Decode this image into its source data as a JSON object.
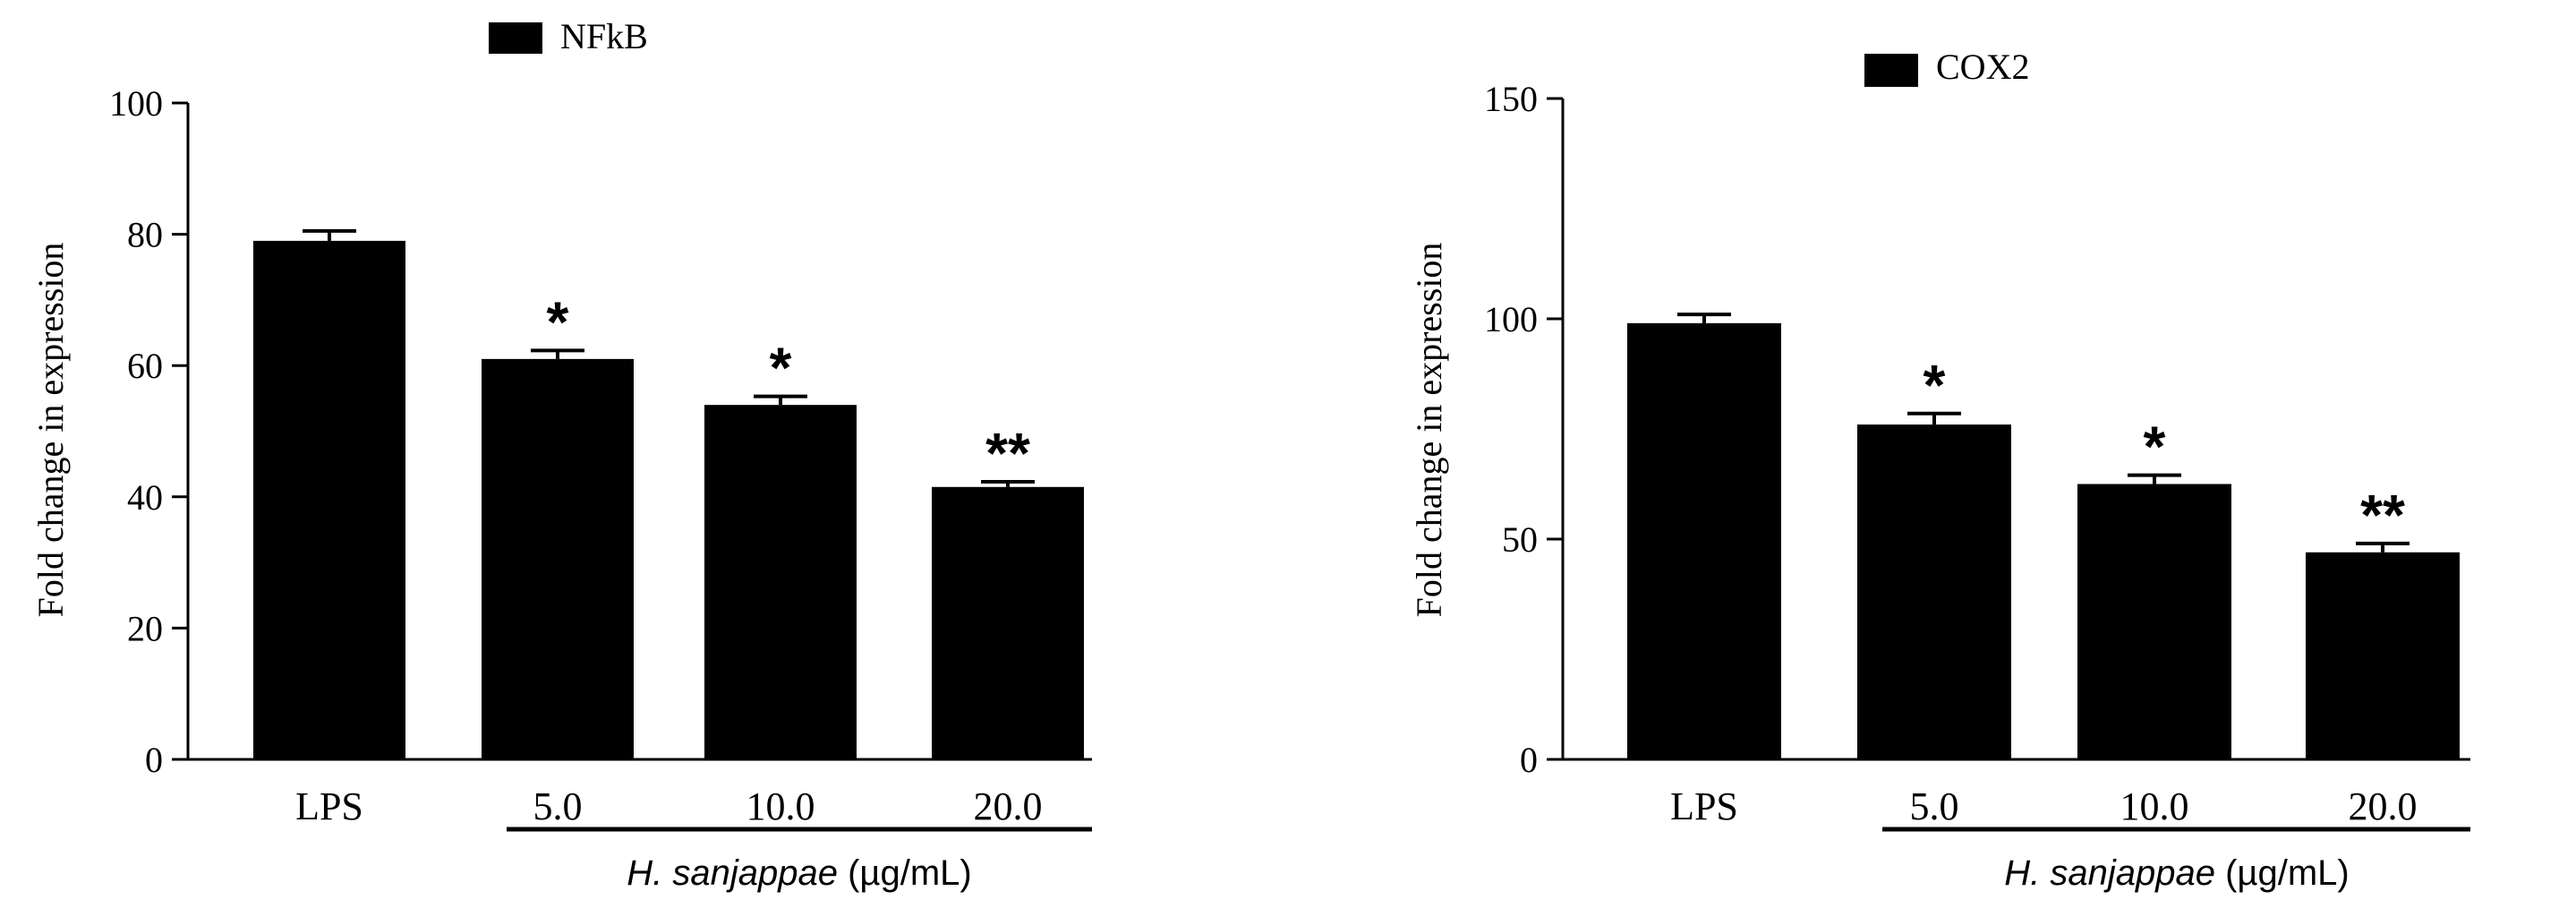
{
  "chart_data": [
    {
      "type": "bar",
      "legend": {
        "label": "NFkB",
        "placement": "top"
      },
      "ylabel": "Fold change in expression",
      "ylim": [
        0,
        100
      ],
      "yticks": [
        "0",
        "20",
        "40",
        "60",
        "80",
        "100"
      ],
      "categories": [
        "LPS",
        "5.0",
        "10.0",
        "20.0"
      ],
      "series": [
        {
          "name": "NFkB",
          "values": [
            79,
            61,
            54,
            41.5
          ],
          "errors": [
            1.5,
            1.3,
            1.3,
            0.8
          ],
          "significance": [
            "",
            "*",
            "*",
            "**"
          ]
        }
      ],
      "xgroup_label": {
        "italic": "H. sanjappae",
        "rest": " (µg/mL)"
      },
      "color": "#000000"
    },
    {
      "type": "bar",
      "legend": {
        "label": "COX2",
        "placement": "top"
      },
      "ylabel": "Fold change in expression",
      "ylim": [
        0,
        150
      ],
      "yticks": [
        "0",
        "50",
        "100",
        "150"
      ],
      "categories": [
        "LPS",
        "5.0",
        "10.0",
        "20.0"
      ],
      "series": [
        {
          "name": "COX2",
          "values": [
            99,
            76,
            62.5,
            47
          ],
          "errors": [
            2,
            2.5,
            2,
            2
          ],
          "significance": [
            "",
            "*",
            "*",
            "**"
          ]
        }
      ],
      "xgroup_label": {
        "italic": "H. sanjappae",
        "rest": " (µg/mL)"
      },
      "color": "#000000"
    }
  ]
}
